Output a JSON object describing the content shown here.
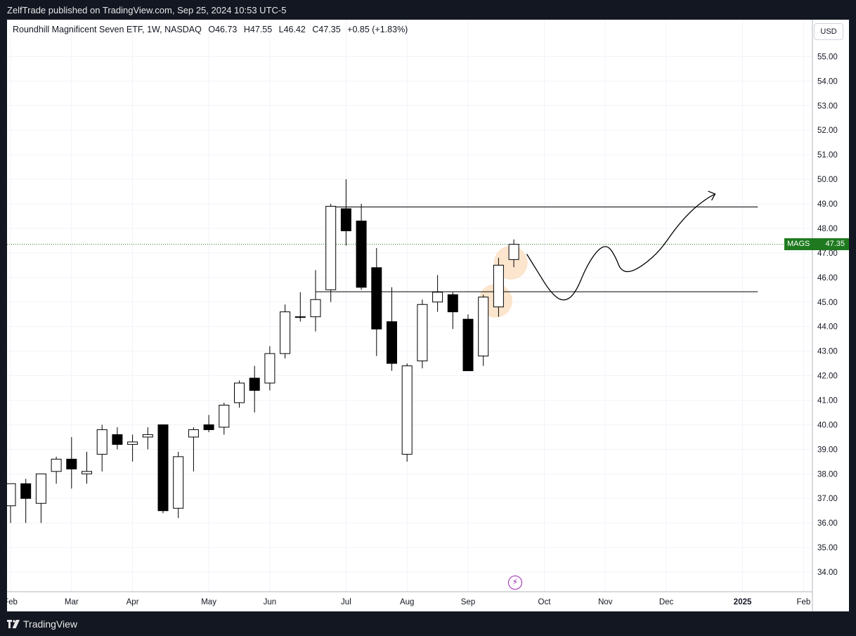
{
  "header": {
    "publisher_line": "ZelfTrade published on TradingView.com, Sep 25, 2024 10:53 UTC-5"
  },
  "legend": {
    "title": "Roundhill Magnificent Seven ETF, 1W, NASDAQ",
    "open": "O46.73",
    "high": "H47.55",
    "low": "L46.42",
    "close": "C47.35",
    "change": "+0.85 (+1.83%)"
  },
  "currency_button": "USD",
  "last_price_tag": {
    "symbol": "MAGS",
    "value": "47.35"
  },
  "footer": {
    "brand": "TradingView"
  },
  "icons": {
    "lightning": "lightning-bolt-icon",
    "logo": "tradingview-logo-icon"
  },
  "colors": {
    "background": "#131722",
    "bull": "#ffffff",
    "bear": "#000000",
    "price_tag": "#1f7a1f",
    "highlight": "#fbe1c4",
    "event": "#9c27b0"
  },
  "chart_data": {
    "type": "candlestick",
    "interval": "1W",
    "ylim": [
      33.2,
      56.5
    ],
    "y_ticks": [
      "34.00",
      "35.00",
      "36.00",
      "37.00",
      "38.00",
      "39.00",
      "40.00",
      "41.00",
      "42.00",
      "43.00",
      "44.00",
      "45.00",
      "46.00",
      "47.00",
      "48.00",
      "49.00",
      "50.00",
      "51.00",
      "52.00",
      "53.00",
      "54.00",
      "55.00"
    ],
    "x_ticks": [
      {
        "label": "Feb",
        "x": 0
      },
      {
        "label": "Mar",
        "x": 4
      },
      {
        "label": "Apr",
        "x": 8
      },
      {
        "label": "May",
        "x": 13
      },
      {
        "label": "Jun",
        "x": 17
      },
      {
        "label": "Jul",
        "x": 22
      },
      {
        "label": "Aug",
        "x": 26
      },
      {
        "label": "Sep",
        "x": 30
      },
      {
        "label": "Oct",
        "x": 35
      },
      {
        "label": "Nov",
        "x": 39
      },
      {
        "label": "Dec",
        "x": 43
      },
      {
        "label": "2025",
        "x": 48
      },
      {
        "label": "Feb",
        "x": 52
      }
    ],
    "candles": [
      {
        "o": 36.7,
        "h": 37.6,
        "l": 36.0,
        "c": 37.6
      },
      {
        "o": 37.6,
        "h": 37.8,
        "l": 36.0,
        "c": 37.0
      },
      {
        "o": 36.8,
        "h": 38.0,
        "l": 36.0,
        "c": 38.0
      },
      {
        "o": 38.1,
        "h": 38.7,
        "l": 37.6,
        "c": 38.6
      },
      {
        "o": 38.6,
        "h": 39.5,
        "l": 37.4,
        "c": 38.2
      },
      {
        "o": 38.0,
        "h": 38.9,
        "l": 37.6,
        "c": 38.1
      },
      {
        "o": 38.8,
        "h": 40.0,
        "l": 38.1,
        "c": 39.8
      },
      {
        "o": 39.6,
        "h": 39.9,
        "l": 39.0,
        "c": 39.2
      },
      {
        "o": 39.2,
        "h": 39.6,
        "l": 38.5,
        "c": 39.3
      },
      {
        "o": 39.5,
        "h": 39.9,
        "l": 39.0,
        "c": 39.6
      },
      {
        "o": 40.0,
        "h": 40.0,
        "l": 36.4,
        "c": 36.5
      },
      {
        "o": 36.6,
        "h": 38.9,
        "l": 36.2,
        "c": 38.7
      },
      {
        "o": 39.5,
        "h": 39.9,
        "l": 38.1,
        "c": 39.8
      },
      {
        "o": 40.0,
        "h": 40.4,
        "l": 39.7,
        "c": 39.8
      },
      {
        "o": 39.9,
        "h": 40.9,
        "l": 39.6,
        "c": 40.8
      },
      {
        "o": 40.9,
        "h": 41.8,
        "l": 40.7,
        "c": 41.7
      },
      {
        "o": 41.9,
        "h": 42.4,
        "l": 40.5,
        "c": 41.4
      },
      {
        "o": 41.7,
        "h": 43.2,
        "l": 41.4,
        "c": 42.9
      },
      {
        "o": 42.9,
        "h": 44.9,
        "l": 42.7,
        "c": 44.6
      },
      {
        "o": 44.4,
        "h": 45.4,
        "l": 44.2,
        "c": 44.4
      },
      {
        "o": 44.4,
        "h": 46.3,
        "l": 43.8,
        "c": 45.1
      },
      {
        "o": 45.5,
        "h": 49.0,
        "l": 45.0,
        "c": 48.9
      },
      {
        "o": 48.8,
        "h": 50.0,
        "l": 47.3,
        "c": 47.9
      },
      {
        "o": 48.3,
        "h": 49.0,
        "l": 45.5,
        "c": 45.6
      },
      {
        "o": 46.4,
        "h": 47.2,
        "l": 42.8,
        "c": 43.9
      },
      {
        "o": 44.2,
        "h": 45.6,
        "l": 42.2,
        "c": 42.5
      },
      {
        "o": 38.8,
        "h": 42.5,
        "l": 38.5,
        "c": 42.4
      },
      {
        "o": 42.6,
        "h": 45.1,
        "l": 42.3,
        "c": 44.9
      },
      {
        "o": 45.0,
        "h": 46.1,
        "l": 44.6,
        "c": 45.4
      },
      {
        "o": 45.3,
        "h": 45.4,
        "l": 43.9,
        "c": 44.6
      },
      {
        "o": 44.3,
        "h": 44.5,
        "l": 42.2,
        "c": 42.2
      },
      {
        "o": 42.8,
        "h": 45.3,
        "l": 42.4,
        "c": 45.2
      },
      {
        "o": 44.8,
        "h": 46.8,
        "l": 44.4,
        "c": 46.5
      },
      {
        "o": 46.73,
        "h": 47.55,
        "l": 46.42,
        "c": 47.35
      }
    ],
    "horizontal_lines": [
      {
        "y": 48.87,
        "x_from": 21,
        "x_to": 49
      },
      {
        "y": 45.42,
        "x_from": 20,
        "x_to": 49
      }
    ],
    "last_price_line": 47.35,
    "highlight_circles": [
      {
        "x": 31.8,
        "y": 45.05
      },
      {
        "x": 32.8,
        "y": 46.6
      }
    ],
    "projection_path": [
      [
        33.85,
        46.95
      ],
      [
        34.6,
        46.2
      ],
      [
        35.4,
        45.4
      ],
      [
        36.2,
        45.0
      ],
      [
        37.0,
        45.3
      ],
      [
        37.8,
        46.5
      ],
      [
        38.6,
        47.2
      ],
      [
        39.2,
        47.3
      ],
      [
        39.7,
        46.8
      ],
      [
        40.0,
        46.3
      ],
      [
        40.6,
        46.2
      ],
      [
        41.5,
        46.5
      ],
      [
        42.6,
        47.1
      ],
      [
        43.6,
        48.0
      ],
      [
        44.6,
        48.7
      ],
      [
        45.6,
        49.2
      ],
      [
        46.2,
        49.4
      ]
    ],
    "projection_arrow_end": [
      46.2,
      49.4
    ]
  }
}
